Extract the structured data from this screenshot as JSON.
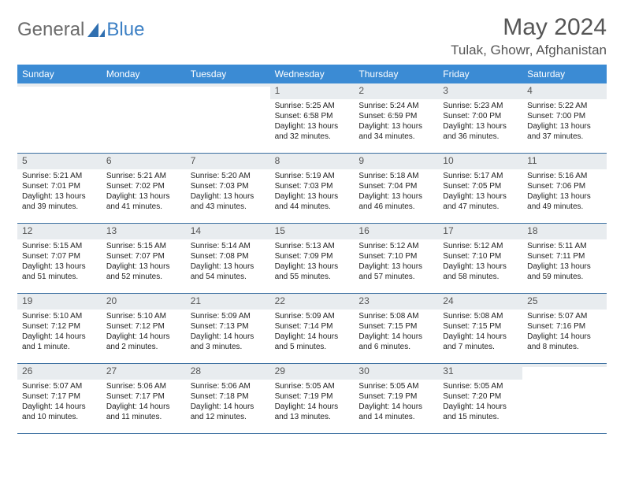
{
  "logo": {
    "word1": "General",
    "word2": "Blue"
  },
  "colors": {
    "brand_blue": "#3b8bd4",
    "logo_gray": "#6b6b6b",
    "logo_blue": "#3b7fc4",
    "header_text": "#555555",
    "daynum_bg": "#e8ecef",
    "row_border": "#3b6fa0",
    "body_text": "#222222",
    "background": "#ffffff"
  },
  "title": "May 2024",
  "location": "Tulak, Ghowr, Afghanistan",
  "daysOfWeek": [
    "Sunday",
    "Monday",
    "Tuesday",
    "Wednesday",
    "Thursday",
    "Friday",
    "Saturday"
  ],
  "weeks": [
    [
      {
        "n": "",
        "sr": "",
        "ss": "",
        "dl1": "",
        "dl2": ""
      },
      {
        "n": "",
        "sr": "",
        "ss": "",
        "dl1": "",
        "dl2": ""
      },
      {
        "n": "",
        "sr": "",
        "ss": "",
        "dl1": "",
        "dl2": ""
      },
      {
        "n": "1",
        "sr": "Sunrise: 5:25 AM",
        "ss": "Sunset: 6:58 PM",
        "dl1": "Daylight: 13 hours",
        "dl2": "and 32 minutes."
      },
      {
        "n": "2",
        "sr": "Sunrise: 5:24 AM",
        "ss": "Sunset: 6:59 PM",
        "dl1": "Daylight: 13 hours",
        "dl2": "and 34 minutes."
      },
      {
        "n": "3",
        "sr": "Sunrise: 5:23 AM",
        "ss": "Sunset: 7:00 PM",
        "dl1": "Daylight: 13 hours",
        "dl2": "and 36 minutes."
      },
      {
        "n": "4",
        "sr": "Sunrise: 5:22 AM",
        "ss": "Sunset: 7:00 PM",
        "dl1": "Daylight: 13 hours",
        "dl2": "and 37 minutes."
      }
    ],
    [
      {
        "n": "5",
        "sr": "Sunrise: 5:21 AM",
        "ss": "Sunset: 7:01 PM",
        "dl1": "Daylight: 13 hours",
        "dl2": "and 39 minutes."
      },
      {
        "n": "6",
        "sr": "Sunrise: 5:21 AM",
        "ss": "Sunset: 7:02 PM",
        "dl1": "Daylight: 13 hours",
        "dl2": "and 41 minutes."
      },
      {
        "n": "7",
        "sr": "Sunrise: 5:20 AM",
        "ss": "Sunset: 7:03 PM",
        "dl1": "Daylight: 13 hours",
        "dl2": "and 43 minutes."
      },
      {
        "n": "8",
        "sr": "Sunrise: 5:19 AM",
        "ss": "Sunset: 7:03 PM",
        "dl1": "Daylight: 13 hours",
        "dl2": "and 44 minutes."
      },
      {
        "n": "9",
        "sr": "Sunrise: 5:18 AM",
        "ss": "Sunset: 7:04 PM",
        "dl1": "Daylight: 13 hours",
        "dl2": "and 46 minutes."
      },
      {
        "n": "10",
        "sr": "Sunrise: 5:17 AM",
        "ss": "Sunset: 7:05 PM",
        "dl1": "Daylight: 13 hours",
        "dl2": "and 47 minutes."
      },
      {
        "n": "11",
        "sr": "Sunrise: 5:16 AM",
        "ss": "Sunset: 7:06 PM",
        "dl1": "Daylight: 13 hours",
        "dl2": "and 49 minutes."
      }
    ],
    [
      {
        "n": "12",
        "sr": "Sunrise: 5:15 AM",
        "ss": "Sunset: 7:07 PM",
        "dl1": "Daylight: 13 hours",
        "dl2": "and 51 minutes."
      },
      {
        "n": "13",
        "sr": "Sunrise: 5:15 AM",
        "ss": "Sunset: 7:07 PM",
        "dl1": "Daylight: 13 hours",
        "dl2": "and 52 minutes."
      },
      {
        "n": "14",
        "sr": "Sunrise: 5:14 AM",
        "ss": "Sunset: 7:08 PM",
        "dl1": "Daylight: 13 hours",
        "dl2": "and 54 minutes."
      },
      {
        "n": "15",
        "sr": "Sunrise: 5:13 AM",
        "ss": "Sunset: 7:09 PM",
        "dl1": "Daylight: 13 hours",
        "dl2": "and 55 minutes."
      },
      {
        "n": "16",
        "sr": "Sunrise: 5:12 AM",
        "ss": "Sunset: 7:10 PM",
        "dl1": "Daylight: 13 hours",
        "dl2": "and 57 minutes."
      },
      {
        "n": "17",
        "sr": "Sunrise: 5:12 AM",
        "ss": "Sunset: 7:10 PM",
        "dl1": "Daylight: 13 hours",
        "dl2": "and 58 minutes."
      },
      {
        "n": "18",
        "sr": "Sunrise: 5:11 AM",
        "ss": "Sunset: 7:11 PM",
        "dl1": "Daylight: 13 hours",
        "dl2": "and 59 minutes."
      }
    ],
    [
      {
        "n": "19",
        "sr": "Sunrise: 5:10 AM",
        "ss": "Sunset: 7:12 PM",
        "dl1": "Daylight: 14 hours",
        "dl2": "and 1 minute."
      },
      {
        "n": "20",
        "sr": "Sunrise: 5:10 AM",
        "ss": "Sunset: 7:12 PM",
        "dl1": "Daylight: 14 hours",
        "dl2": "and 2 minutes."
      },
      {
        "n": "21",
        "sr": "Sunrise: 5:09 AM",
        "ss": "Sunset: 7:13 PM",
        "dl1": "Daylight: 14 hours",
        "dl2": "and 3 minutes."
      },
      {
        "n": "22",
        "sr": "Sunrise: 5:09 AM",
        "ss": "Sunset: 7:14 PM",
        "dl1": "Daylight: 14 hours",
        "dl2": "and 5 minutes."
      },
      {
        "n": "23",
        "sr": "Sunrise: 5:08 AM",
        "ss": "Sunset: 7:15 PM",
        "dl1": "Daylight: 14 hours",
        "dl2": "and 6 minutes."
      },
      {
        "n": "24",
        "sr": "Sunrise: 5:08 AM",
        "ss": "Sunset: 7:15 PM",
        "dl1": "Daylight: 14 hours",
        "dl2": "and 7 minutes."
      },
      {
        "n": "25",
        "sr": "Sunrise: 5:07 AM",
        "ss": "Sunset: 7:16 PM",
        "dl1": "Daylight: 14 hours",
        "dl2": "and 8 minutes."
      }
    ],
    [
      {
        "n": "26",
        "sr": "Sunrise: 5:07 AM",
        "ss": "Sunset: 7:17 PM",
        "dl1": "Daylight: 14 hours",
        "dl2": "and 10 minutes."
      },
      {
        "n": "27",
        "sr": "Sunrise: 5:06 AM",
        "ss": "Sunset: 7:17 PM",
        "dl1": "Daylight: 14 hours",
        "dl2": "and 11 minutes."
      },
      {
        "n": "28",
        "sr": "Sunrise: 5:06 AM",
        "ss": "Sunset: 7:18 PM",
        "dl1": "Daylight: 14 hours",
        "dl2": "and 12 minutes."
      },
      {
        "n": "29",
        "sr": "Sunrise: 5:05 AM",
        "ss": "Sunset: 7:19 PM",
        "dl1": "Daylight: 14 hours",
        "dl2": "and 13 minutes."
      },
      {
        "n": "30",
        "sr": "Sunrise: 5:05 AM",
        "ss": "Sunset: 7:19 PM",
        "dl1": "Daylight: 14 hours",
        "dl2": "and 14 minutes."
      },
      {
        "n": "31",
        "sr": "Sunrise: 5:05 AM",
        "ss": "Sunset: 7:20 PM",
        "dl1": "Daylight: 14 hours",
        "dl2": "and 15 minutes."
      },
      {
        "n": "",
        "sr": "",
        "ss": "",
        "dl1": "",
        "dl2": ""
      }
    ]
  ]
}
